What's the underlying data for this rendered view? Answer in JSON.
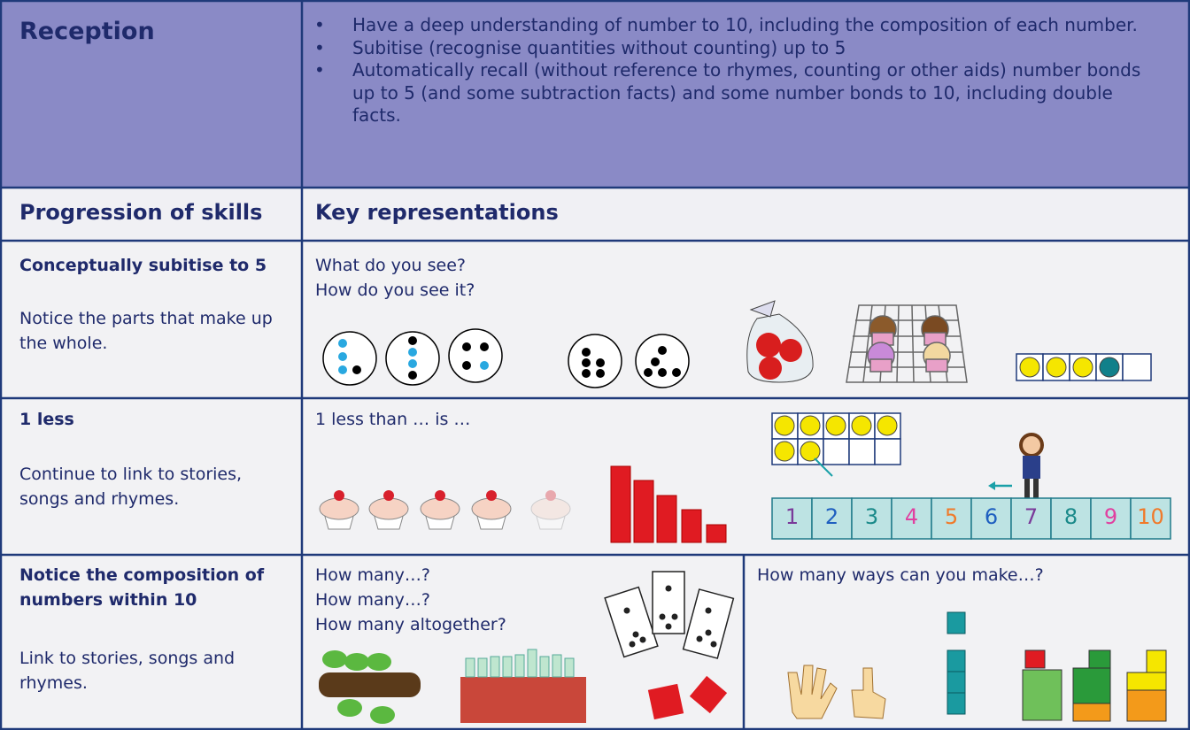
{
  "header": {
    "title": "Reception",
    "bullets": [
      "Have a deep understanding of number to 10, including the composition of each number.",
      "Subitise (recognise quantities without counting) up to 5",
      "Automatically recall (without reference to rhymes, counting or other aids) number bonds up to 5 (and some subtraction facts) and some number bonds to 10, including double facts."
    ]
  },
  "table": {
    "headings": [
      "Progression of skills",
      "Key representations"
    ],
    "rows": [
      {
        "skill": "Conceptually subitise to 5",
        "description": "Notice the parts that make up the whole.",
        "prompts": [
          "What do you see?",
          "How do you see it?"
        ]
      },
      {
        "skill": "1 less",
        "description": "Continue to link to stories, songs and rhymes.",
        "prompts": [
          "1 less than … is …"
        ],
        "number_line": [
          1,
          2,
          3,
          4,
          5,
          6,
          7,
          8,
          9,
          10
        ]
      },
      {
        "skill": "Notice the composition of numbers within 10",
        "description": "Link to stories, songs and rhymes.",
        "prompts": [
          "How many…?",
          "How many…?",
          "How many altogether?"
        ],
        "prompts_right": [
          "How many ways can you make…?"
        ]
      }
    ]
  }
}
